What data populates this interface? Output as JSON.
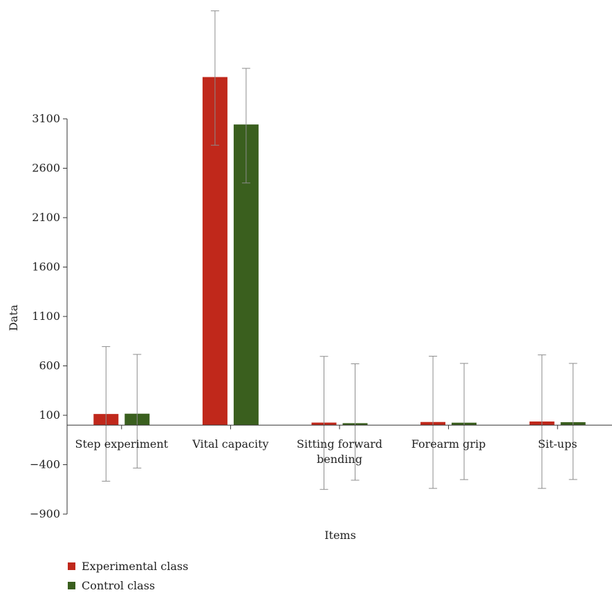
{
  "chart_data": {
    "type": "bar",
    "title": "",
    "xlabel": "Items",
    "ylabel": "Data",
    "categories": [
      [
        "Step experiment"
      ],
      [
        "Vital capacity"
      ],
      [
        "Sitting forward",
        "bending"
      ],
      [
        "Forearm grip"
      ],
      [
        "Sit-ups"
      ]
    ],
    "yticks": [
      3100,
      2600,
      2100,
      1600,
      1100,
      600,
      100,
      -400,
      -900
    ],
    "ylim": [
      -900,
      4080
    ],
    "series": [
      {
        "name": "Experimental class",
        "color": "#c0281b",
        "values": [
          113,
          3523,
          26,
          32,
          37
        ],
        "error_high": [
          795,
          4193,
          696,
          698,
          711
        ],
        "error_low": [
          -567,
          2833,
          -650,
          -640,
          -640
        ]
      },
      {
        "name": "Control class",
        "color": "#3a5f1e",
        "values": [
          116,
          3043,
          20,
          25,
          30
        ],
        "error_high": [
          716,
          3611,
          621,
          625,
          625
        ],
        "error_low": [
          -434,
          2451,
          -557,
          -551,
          -550
        ]
      }
    ],
    "legend_position": "bottom-left",
    "grid": false
  }
}
